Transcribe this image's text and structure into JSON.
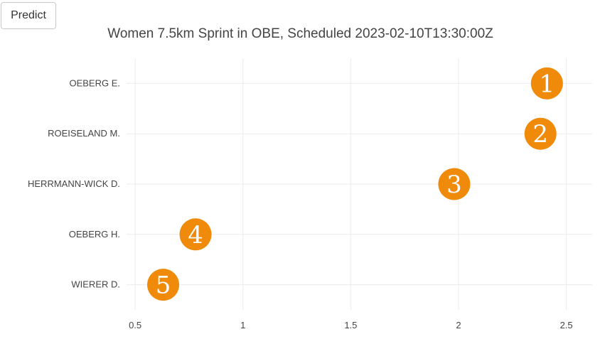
{
  "toolbar": {
    "predict_label": "Predict"
  },
  "chart_data": {
    "type": "scatter",
    "title": "Women 7.5km Sprint in OBE, Scheduled 2023-02-10T13:30:00Z",
    "xlabel": "",
    "ylabel": "",
    "xlim": [
      0.46,
      2.62
    ],
    "xticks": [
      "0.5",
      "1",
      "1.5",
      "2",
      "2.5"
    ],
    "xtick_values": [
      0.5,
      1,
      1.5,
      2,
      2.5
    ],
    "categories": [
      "OEBERG E.",
      "ROEISELAND M.",
      "HERRMANN-WICK D.",
      "OEBERG H.",
      "WIERER D."
    ],
    "points": [
      {
        "athlete": "OEBERG E.",
        "x": 2.41,
        "rank": "1"
      },
      {
        "athlete": "ROEISELAND M.",
        "x": 2.38,
        "rank": "2"
      },
      {
        "athlete": "HERRMANN-WICK D.",
        "x": 1.98,
        "rank": "3"
      },
      {
        "athlete": "OEBERG H.",
        "x": 0.78,
        "rank": "4"
      },
      {
        "athlete": "WIERER D.",
        "x": 0.63,
        "rank": "5"
      }
    ],
    "marker_color": "#f08a0b",
    "grid": true,
    "legend": "none"
  }
}
